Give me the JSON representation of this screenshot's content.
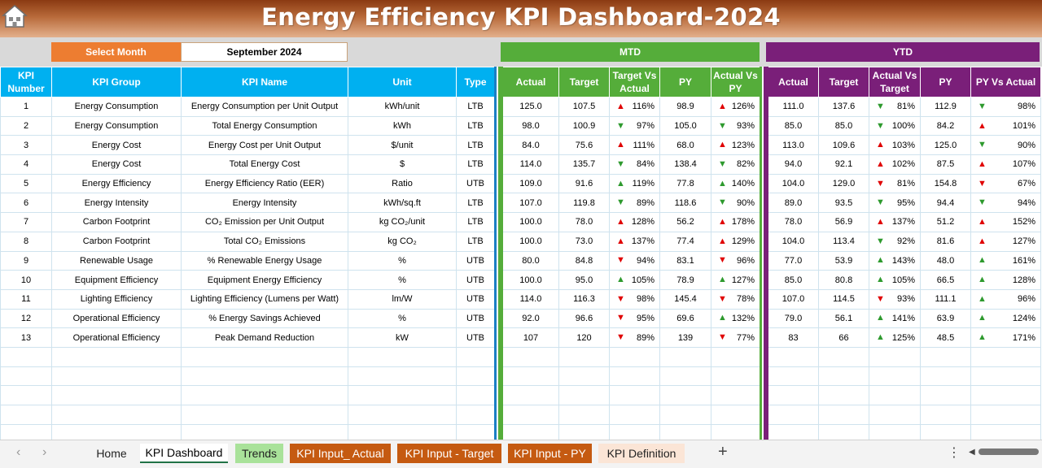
{
  "header": {
    "title": "Energy Efficiency KPI Dashboard-2024"
  },
  "selector": {
    "label": "Select Month",
    "value": "September 2024"
  },
  "sections": {
    "mtd": "MTD",
    "ytd": "YTD"
  },
  "main_headers": [
    "KPI Number",
    "KPI Group",
    "KPI Name",
    "Unit",
    "Type"
  ],
  "mtd_headers": [
    "Actual",
    "Target",
    "Target Vs Actual",
    "PY",
    "Actual Vs PY"
  ],
  "ytd_headers": [
    "Actual",
    "Target",
    "Actual Vs Target",
    "PY",
    "PY Vs Actual"
  ],
  "rows": [
    {
      "num": "1",
      "group": "Energy Consumption",
      "name": "Energy Consumption per Unit Output",
      "unit": "kWh/unit",
      "type": "LTB",
      "mtd": {
        "actual": "125.0",
        "target": "107.5",
        "tva": "116%",
        "tva_dir": "up",
        "py": "98.9",
        "avp": "126%",
        "avp_dir": "up"
      },
      "ytd": {
        "actual": "111.0",
        "target": "137.6",
        "avt": "81%",
        "avt_dir": "down",
        "py": "112.9",
        "pva": "98%",
        "pva_dir": "down"
      }
    },
    {
      "num": "2",
      "group": "Energy Consumption",
      "name": "Total Energy Consumption",
      "unit": "kWh",
      "type": "LTB",
      "mtd": {
        "actual": "98.0",
        "target": "100.9",
        "tva": "97%",
        "tva_dir": "down",
        "py": "105.0",
        "avp": "93%",
        "avp_dir": "down"
      },
      "ytd": {
        "actual": "85.0",
        "target": "85.0",
        "avt": "100%",
        "avt_dir": "down",
        "py": "84.2",
        "pva": "101%",
        "pva_dir": "up"
      }
    },
    {
      "num": "3",
      "group": "Energy Cost",
      "name": "Energy Cost per Unit Output",
      "unit": "$/unit",
      "type": "LTB",
      "mtd": {
        "actual": "84.0",
        "target": "75.6",
        "tva": "111%",
        "tva_dir": "up",
        "py": "68.0",
        "avp": "123%",
        "avp_dir": "up"
      },
      "ytd": {
        "actual": "113.0",
        "target": "109.6",
        "avt": "103%",
        "avt_dir": "up",
        "py": "125.0",
        "pva": "90%",
        "pva_dir": "down"
      }
    },
    {
      "num": "4",
      "group": "Energy Cost",
      "name": "Total Energy Cost",
      "unit": "$",
      "type": "LTB",
      "mtd": {
        "actual": "114.0",
        "target": "135.7",
        "tva": "84%",
        "tva_dir": "down",
        "py": "138.4",
        "avp": "82%",
        "avp_dir": "down"
      },
      "ytd": {
        "actual": "94.0",
        "target": "92.1",
        "avt": "102%",
        "avt_dir": "up",
        "py": "87.5",
        "pva": "107%",
        "pva_dir": "up"
      }
    },
    {
      "num": "5",
      "group": "Energy Efficiency",
      "name": "Energy Efficiency Ratio (EER)",
      "unit": "Ratio",
      "type": "UTB",
      "mtd": {
        "actual": "109.0",
        "target": "91.6",
        "tva": "119%",
        "tva_dir": "upgood",
        "py": "77.8",
        "avp": "140%",
        "avp_dir": "upgood"
      },
      "ytd": {
        "actual": "104.0",
        "target": "129.0",
        "avt": "81%",
        "avt_dir": "downbad",
        "py": "154.8",
        "pva": "67%",
        "pva_dir": "downbad"
      }
    },
    {
      "num": "6",
      "group": "Energy Intensity",
      "name": "Energy Intensity",
      "unit": "kWh/sq.ft",
      "type": "LTB",
      "mtd": {
        "actual": "107.0",
        "target": "119.8",
        "tva": "89%",
        "tva_dir": "down",
        "py": "118.6",
        "avp": "90%",
        "avp_dir": "down"
      },
      "ytd": {
        "actual": "89.0",
        "target": "93.5",
        "avt": "95%",
        "avt_dir": "down",
        "py": "94.4",
        "pva": "94%",
        "pva_dir": "down"
      }
    },
    {
      "num": "7",
      "group": "Carbon Footprint",
      "name": "CO₂ Emission per Unit Output",
      "unit": "kg CO₂/unit",
      "type": "LTB",
      "mtd": {
        "actual": "100.0",
        "target": "78.0",
        "tva": "128%",
        "tva_dir": "up",
        "py": "56.2",
        "avp": "178%",
        "avp_dir": "up"
      },
      "ytd": {
        "actual": "78.0",
        "target": "56.9",
        "avt": "137%",
        "avt_dir": "up",
        "py": "51.2",
        "pva": "152%",
        "pva_dir": "up"
      }
    },
    {
      "num": "8",
      "group": "Carbon Footprint",
      "name": "Total CO₂ Emissions",
      "unit": "kg CO₂",
      "type": "LTB",
      "mtd": {
        "actual": "100.0",
        "target": "73.0",
        "tva": "137%",
        "tva_dir": "up",
        "py": "77.4",
        "avp": "129%",
        "avp_dir": "up"
      },
      "ytd": {
        "actual": "104.0",
        "target": "113.4",
        "avt": "92%",
        "avt_dir": "down",
        "py": "81.6",
        "pva": "127%",
        "pva_dir": "up"
      }
    },
    {
      "num": "9",
      "group": "Renewable Usage",
      "name": "% Renewable Energy Usage",
      "unit": "%",
      "type": "UTB",
      "mtd": {
        "actual": "80.0",
        "target": "84.8",
        "tva": "94%",
        "tva_dir": "downbad",
        "py": "83.1",
        "avp": "96%",
        "avp_dir": "downbad"
      },
      "ytd": {
        "actual": "77.0",
        "target": "53.9",
        "avt": "143%",
        "avt_dir": "upgood",
        "py": "48.0",
        "pva": "161%",
        "pva_dir": "upgood"
      }
    },
    {
      "num": "10",
      "group": "Equipment Efficiency",
      "name": "Equipment Energy Efficiency",
      "unit": "%",
      "type": "UTB",
      "mtd": {
        "actual": "100.0",
        "target": "95.0",
        "tva": "105%",
        "tva_dir": "upgood",
        "py": "78.9",
        "avp": "127%",
        "avp_dir": "upgood"
      },
      "ytd": {
        "actual": "85.0",
        "target": "80.8",
        "avt": "105%",
        "avt_dir": "upgood",
        "py": "66.5",
        "pva": "128%",
        "pva_dir": "upgood"
      }
    },
    {
      "num": "11",
      "group": "Lighting Efficiency",
      "name": "Lighting Efficiency (Lumens per Watt)",
      "unit": "lm/W",
      "type": "UTB",
      "mtd": {
        "actual": "114.0",
        "target": "116.3",
        "tva": "98%",
        "tva_dir": "downbad",
        "py": "145.4",
        "avp": "78%",
        "avp_dir": "downbad"
      },
      "ytd": {
        "actual": "107.0",
        "target": "114.5",
        "avt": "93%",
        "avt_dir": "downbad",
        "py": "111.1",
        "pva": "96%",
        "pva_dir": "upgood"
      }
    },
    {
      "num": "12",
      "group": "Operational Efficiency",
      "name": "% Energy Savings Achieved",
      "unit": "%",
      "type": "UTB",
      "mtd": {
        "actual": "92.0",
        "target": "96.6",
        "tva": "95%",
        "tva_dir": "downbad",
        "py": "69.6",
        "avp": "132%",
        "avp_dir": "upgood"
      },
      "ytd": {
        "actual": "79.0",
        "target": "56.1",
        "avt": "141%",
        "avt_dir": "upgood",
        "py": "63.9",
        "pva": "124%",
        "pva_dir": "upgood"
      }
    },
    {
      "num": "13",
      "group": "Operational Efficiency",
      "name": "Peak Demand Reduction",
      "unit": "kW",
      "type": "UTB",
      "mtd": {
        "actual": "107",
        "target": "120",
        "tva": "89%",
        "tva_dir": "downbad",
        "py": "139",
        "avp": "77%",
        "avp_dir": "downbad"
      },
      "ytd": {
        "actual": "83",
        "target": "66",
        "avt": "125%",
        "avt_dir": "upgood",
        "py": "48.5",
        "pva": "171%",
        "pva_dir": "upgood"
      }
    }
  ],
  "tabs": [
    "Home",
    "KPI Dashboard",
    "Trends",
    "KPI Input_ Actual",
    "KPI Input - Target",
    "KPI Input - PY",
    "KPI Definition"
  ],
  "colors": {
    "main_header": "#00b0f0",
    "mtd": "#55ad3a",
    "ytd": "#7a1f79",
    "select": "#ed7d31",
    "bad": "#e00000",
    "good": "#2e9a2e"
  }
}
